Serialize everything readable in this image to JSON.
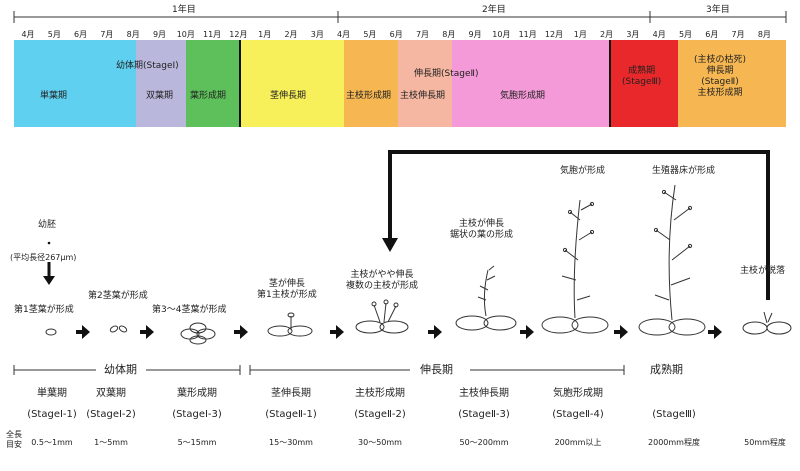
{
  "timeline": {
    "years": [
      "1年目",
      "2年目",
      "3年目"
    ],
    "months": [
      "4月",
      "5月",
      "6月",
      "7月",
      "8月",
      "9月",
      "10月",
      "11月",
      "12月",
      "1月",
      "2月",
      "3月",
      "4月",
      "5月",
      "6月",
      "7月",
      "8月",
      "9月",
      "10月",
      "11月",
      "12月",
      "1月",
      "2月",
      "3月",
      "4月",
      "5月",
      "6月",
      "7月",
      "8月"
    ],
    "bands": [
      {
        "label": "単葉期",
        "color": "#5fd0ef"
      },
      {
        "label": "双葉期",
        "color": "#b9b8dc"
      },
      {
        "label": "葉形成期",
        "color": "#5ec05a"
      },
      {
        "label": "茎伸長期",
        "color": "#f7f05a"
      },
      {
        "label": "主枝形成期",
        "color": "#f6b752"
      },
      {
        "label": "主枝伸長期",
        "color": "#f5b7a2"
      },
      {
        "label": "気胞形成期",
        "color": "#f49ad8"
      },
      {
        "label": "成熟期\n(StageⅢ)",
        "color": "#e8282a"
      },
      {
        "label": "(主枝の枯死)\n伸長期\n(StageⅡ)\n主枝形成期",
        "color": "#f6b752"
      }
    ],
    "overlays": {
      "juvenile": "幼体期(StageⅠ)",
      "elongation": "伸長期(StageⅡ)"
    }
  },
  "stages": {
    "embryo_label": "幼胚",
    "embryo_size": "(平均長径267μm)",
    "items": [
      {
        "caption": "第1茎葉が形成"
      },
      {
        "caption": "第2茎葉が形成"
      },
      {
        "caption": "第3〜4茎葉が形成"
      },
      {
        "caption": "茎が伸長\n第1主枝が形成"
      },
      {
        "caption": "主枝がやや伸長\n複数の主枝が形成"
      },
      {
        "caption": "主枝が伸長\n鋸状の葉の形成"
      },
      {
        "caption": "気胞が形成"
      },
      {
        "caption": "生殖器床が形成"
      },
      {
        "caption": "主枝が脱落"
      }
    ]
  },
  "phases": {
    "juvenile": "幼体期",
    "elongation": "伸長期",
    "mature": "成熟期"
  },
  "table": {
    "length_label": "全長\n目安",
    "columns": [
      {
        "name": "単葉期",
        "stage": "(StageⅠ-1)",
        "size": "0.5〜1mm"
      },
      {
        "name": "双葉期",
        "stage": "(StageⅠ-2)",
        "size": "1〜5mm"
      },
      {
        "name": "葉形成期",
        "stage": "(StageⅠ-3)",
        "size": "5〜15mm"
      },
      {
        "name": "茎伸長期",
        "stage": "(StageⅡ-1)",
        "size": "15〜30mm"
      },
      {
        "name": "主枝形成期",
        "stage": "(StageⅡ-2)",
        "size": "30〜50mm"
      },
      {
        "name": "主枝伸長期",
        "stage": "(StageⅡ-3)",
        "size": "50〜200mm"
      },
      {
        "name": "気胞形成期",
        "stage": "(StageⅡ-4)",
        "size": "200mm以上"
      },
      {
        "name": "",
        "stage": "(StageⅢ)",
        "size": "2000mm程度"
      },
      {
        "name": "",
        "stage": "",
        "size": "50mm程度"
      }
    ]
  }
}
